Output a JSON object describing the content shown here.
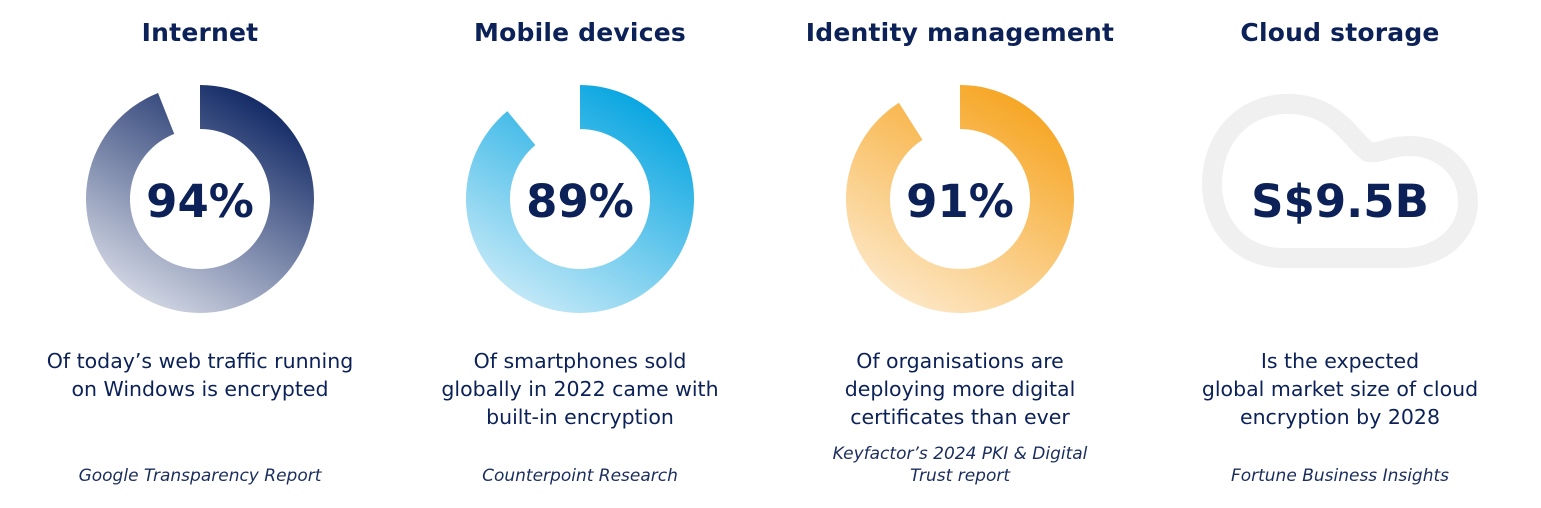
{
  "cards": [
    {
      "title": "Internet",
      "value_label": "94%",
      "percent": 94,
      "description_lines": [
        "Of today’s web traffic running",
        "on Windows is encrypted"
      ],
      "source_lines": [
        "Google Transparency Report"
      ],
      "colors": {
        "start": "#0a2260",
        "end": "#e2e5ee"
      }
    },
    {
      "title": "Mobile devices",
      "value_label": "89%",
      "percent": 89,
      "description_lines": [
        "Of smartphones sold",
        "globally in 2022 came with",
        "built-in encryption"
      ],
      "source_lines": [
        "Counterpoint Research"
      ],
      "colors": {
        "start": "#00a3e0",
        "end": "#d3eef9"
      }
    },
    {
      "title": "Identity management",
      "value_label": "91%",
      "percent": 91,
      "description_lines": [
        "Of organisations are",
        "deploying more digital",
        "certificates than ever"
      ],
      "source_lines": [
        "Keyfactor’s 2024 PKI & Digital",
        "Trust report"
      ],
      "colors": {
        "start": "#f6a31d",
        "end": "#fdecd2"
      }
    },
    {
      "title": "Cloud storage",
      "value_label": "S$9.5B",
      "icon": "cloud-icon",
      "description_lines": [
        "Is the expected",
        "global market size of cloud",
        "encryption by 2028"
      ],
      "source_lines": [
        "Fortune Business Insights"
      ],
      "colors": {
        "outline": "#f0f0f0"
      }
    }
  ],
  "chart_data": {
    "type": "pie",
    "subtype": "donut-progress",
    "categories": [
      "Internet",
      "Mobile devices",
      "Identity management"
    ],
    "values": [
      94,
      89,
      91
    ],
    "unit": "%",
    "ylim": [
      0,
      100
    ],
    "annotations": [
      "94%",
      "89%",
      "91%"
    ]
  }
}
